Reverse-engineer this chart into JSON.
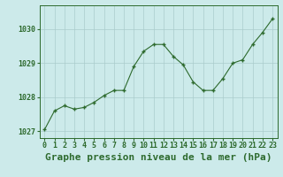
{
  "x": [
    0,
    1,
    2,
    3,
    4,
    5,
    6,
    7,
    8,
    9,
    10,
    11,
    12,
    13,
    14,
    15,
    16,
    17,
    18,
    19,
    20,
    21,
    22,
    23
  ],
  "y": [
    1027.05,
    1027.6,
    1027.75,
    1027.65,
    1027.7,
    1027.85,
    1028.05,
    1028.2,
    1028.2,
    1028.9,
    1029.35,
    1029.55,
    1029.55,
    1029.2,
    1028.95,
    1028.45,
    1028.2,
    1028.2,
    1028.55,
    1029.0,
    1029.1,
    1029.55,
    1029.9,
    1030.3
  ],
  "line_color": "#2d6a2d",
  "marker_color": "#2d6a2d",
  "bg_color": "#cceaea",
  "grid_color": "#aacccc",
  "title": "Graphe pression niveau de la mer (hPa)",
  "ylim": [
    1026.8,
    1030.7
  ],
  "yticks": [
    1027,
    1028,
    1029,
    1030
  ],
  "xticks": [
    0,
    1,
    2,
    3,
    4,
    5,
    6,
    7,
    8,
    9,
    10,
    11,
    12,
    13,
    14,
    15,
    16,
    17,
    18,
    19,
    20,
    21,
    22,
    23
  ],
  "title_fontsize": 8,
  "tick_fontsize": 6,
  "title_color": "#2d6a2d",
  "tick_color": "#2d6a2d",
  "spine_color": "#2d6a2d"
}
